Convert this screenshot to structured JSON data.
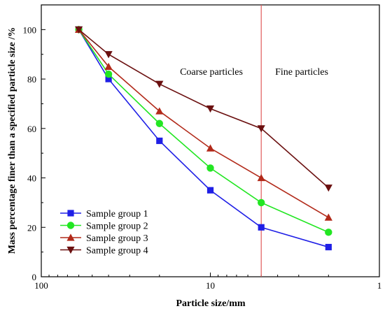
{
  "chart_data": {
    "type": "line",
    "title": "",
    "xlabel": "Particle size/mm",
    "ylabel": "Mass percentage finer than a specified particle size /%",
    "x_scale": "log",
    "x_reversed": true,
    "xlim": [
      100,
      1
    ],
    "ylim": [
      0,
      110
    ],
    "x_ticks": [
      100,
      10,
      1
    ],
    "y_ticks": [
      0,
      20,
      40,
      60,
      80,
      100
    ],
    "x": [
      60,
      40,
      20,
      10,
      5,
      2
    ],
    "series": [
      {
        "name": "Sample group 1",
        "marker": "square",
        "color": "#1f1fe6",
        "values": [
          100,
          80,
          55,
          35,
          20,
          12
        ]
      },
      {
        "name": "Sample group 2",
        "marker": "circle",
        "color": "#22e622",
        "values": [
          100,
          82,
          62,
          44,
          30,
          18
        ]
      },
      {
        "name": "Sample group 3",
        "marker": "triangle-up",
        "color": "#b22a1a",
        "values": [
          100,
          85,
          67,
          52,
          40,
          24
        ]
      },
      {
        "name": "Sample group 4",
        "marker": "triangle-down",
        "color": "#6b1010",
        "values": [
          100,
          90,
          78,
          68,
          60,
          36
        ]
      }
    ],
    "divider": {
      "x": 5,
      "color": "#e05a5a"
    },
    "annotations": [
      "Coarse particles",
      "Fine particles"
    ],
    "legend_position": "bottom-left",
    "grid": false
  }
}
